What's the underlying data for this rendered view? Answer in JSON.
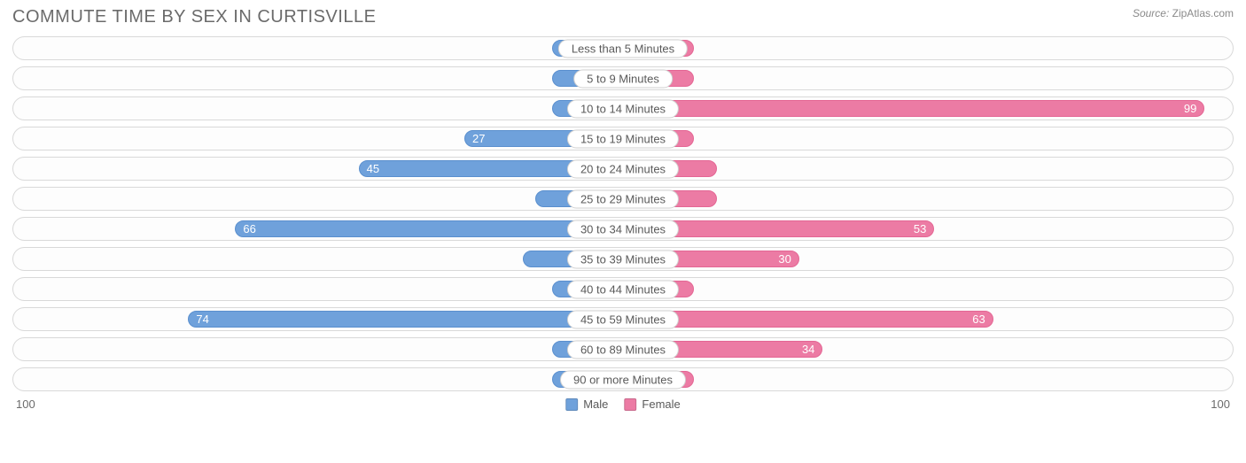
{
  "title": "COMMUTE TIME BY SEX IN CURTISVILLE",
  "source_label": "Source:",
  "source_value": "ZipAtlas.com",
  "chart": {
    "type": "diverging-bar",
    "axis_max": 100,
    "axis_left_label": "100",
    "axis_right_label": "100",
    "bar_min_width_pct": 12,
    "value_inside_threshold_pct": 20,
    "colors": {
      "male": "#6fa1db",
      "male_border": "#5a8fce",
      "female": "#ec7ba4",
      "female_border": "#e46694",
      "row_border": "#d9d9d9",
      "background": "#ffffff",
      "text": "#6b6b6b"
    },
    "series": [
      {
        "key": "male",
        "label": "Male"
      },
      {
        "key": "female",
        "label": "Female"
      }
    ],
    "categories": [
      {
        "label": "Less than 5 Minutes",
        "male": 0,
        "female": 0
      },
      {
        "label": "5 to 9 Minutes",
        "male": 0,
        "female": 0
      },
      {
        "label": "10 to 14 Minutes",
        "male": 0,
        "female": 99
      },
      {
        "label": "15 to 19 Minutes",
        "male": 27,
        "female": 11
      },
      {
        "label": "20 to 24 Minutes",
        "male": 45,
        "female": 16
      },
      {
        "label": "25 to 29 Minutes",
        "male": 15,
        "female": 16
      },
      {
        "label": "30 to 34 Minutes",
        "male": 66,
        "female": 53
      },
      {
        "label": "35 to 39 Minutes",
        "male": 17,
        "female": 30
      },
      {
        "label": "40 to 44 Minutes",
        "male": 10,
        "female": 0
      },
      {
        "label": "45 to 59 Minutes",
        "male": 74,
        "female": 63
      },
      {
        "label": "60 to 89 Minutes",
        "male": 0,
        "female": 34
      },
      {
        "label": "90 or more Minutes",
        "male": 7,
        "female": 0
      }
    ]
  }
}
